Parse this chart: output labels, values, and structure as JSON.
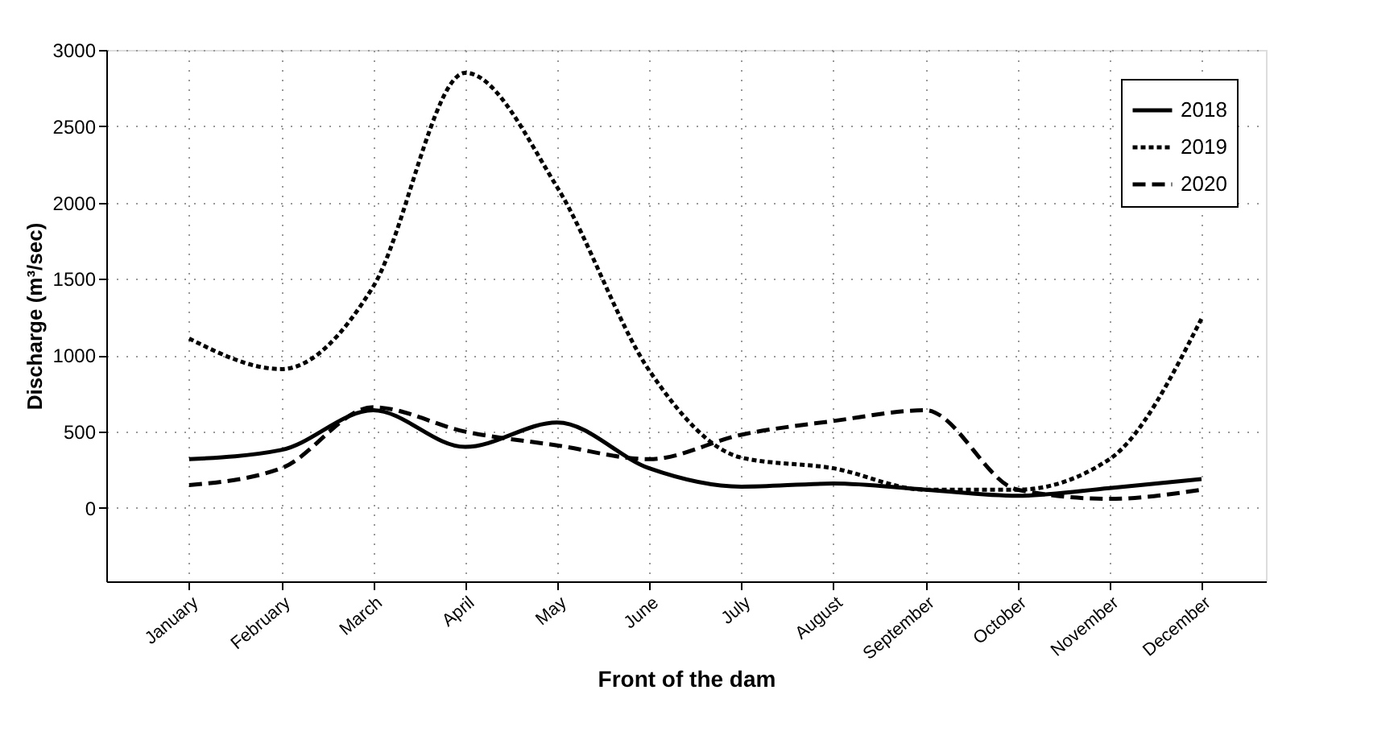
{
  "chart_data": {
    "type": "line",
    "xlabel": "Front of the dam",
    "ylabel": "Discharge (m³/sec)",
    "categories": [
      "January",
      "February",
      "March",
      "April",
      "May",
      "June",
      "July",
      "August",
      "September",
      "October",
      "November",
      "December"
    ],
    "series": [
      {
        "name": "2018",
        "color": "#000000",
        "line_style": "solid",
        "values": [
          320,
          380,
          640,
          400,
          560,
          260,
          140,
          160,
          120,
          80,
          130,
          190
        ]
      },
      {
        "name": "2019",
        "color": "#000000",
        "line_style": "dotted",
        "values": [
          1110,
          910,
          1450,
          2850,
          2100,
          900,
          330,
          260,
          120,
          120,
          320,
          1240
        ]
      },
      {
        "name": "2020",
        "color": "#000000",
        "line_style": "dashed",
        "values": [
          150,
          260,
          660,
          500,
          410,
          320,
          480,
          570,
          640,
          120,
          60,
          120
        ]
      }
    ],
    "ylim": [
      -480,
      3000
    ],
    "yticks": [
      0,
      500,
      1000,
      1500,
      2000,
      2500,
      3000
    ],
    "grid": true,
    "legend": "top right",
    "marker": "none"
  }
}
